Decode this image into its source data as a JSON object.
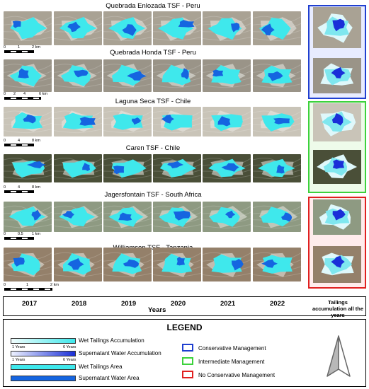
{
  "sites": [
    {
      "title": "Quebrada Enlozada TSF - Peru",
      "scale": [
        "0",
        "1",
        "2 km"
      ]
    },
    {
      "title": "Quebrada Honda TSF - Peru",
      "scale": [
        "0",
        "2",
        "4",
        "6 km"
      ]
    },
    {
      "title": "Laguna Seca TSF - Chile",
      "scale": [
        "0",
        "4",
        "8 km"
      ]
    },
    {
      "title": "Caren TSF - Chile",
      "scale": [
        "0",
        "4",
        "8 km"
      ]
    },
    {
      "title": "Jagersfontain TSF - South Africa",
      "scale": [
        "0",
        "0.5",
        "1 km"
      ]
    },
    {
      "title": "Williamson TSF - Tanzania",
      "scale": [
        "0",
        "1",
        "2 km"
      ]
    }
  ],
  "years": [
    "2017",
    "2018",
    "2019",
    "2020",
    "2021",
    "2022"
  ],
  "years_caption": "Years",
  "accumulation_label": "Tailings accumulation all the years",
  "legend": {
    "title": "LEGEND",
    "wet_accumulation": "Wet Tailings Accumulation",
    "supernatant_accumulation": "Supernatant Water Accumulation",
    "ramp_min": "1 Years",
    "ramp_max": "6 Years",
    "wet_area": "Wet Tailings Area",
    "supernatant_area": "Supernatant Water Area",
    "conservative": "Conservative Management",
    "intermediate": "Intermediate Management",
    "no_conservative": "No Conservative Management"
  },
  "colors": {
    "conservative": "#1f3fd0",
    "intermediate": "#3cd23c",
    "no_conservative": "#e02020",
    "wet_tailings": "#3fe8ec",
    "supernatant": "#1565e0",
    "terrain": "#a9a294"
  },
  "icons": [
    "north-arrow-icon"
  ]
}
